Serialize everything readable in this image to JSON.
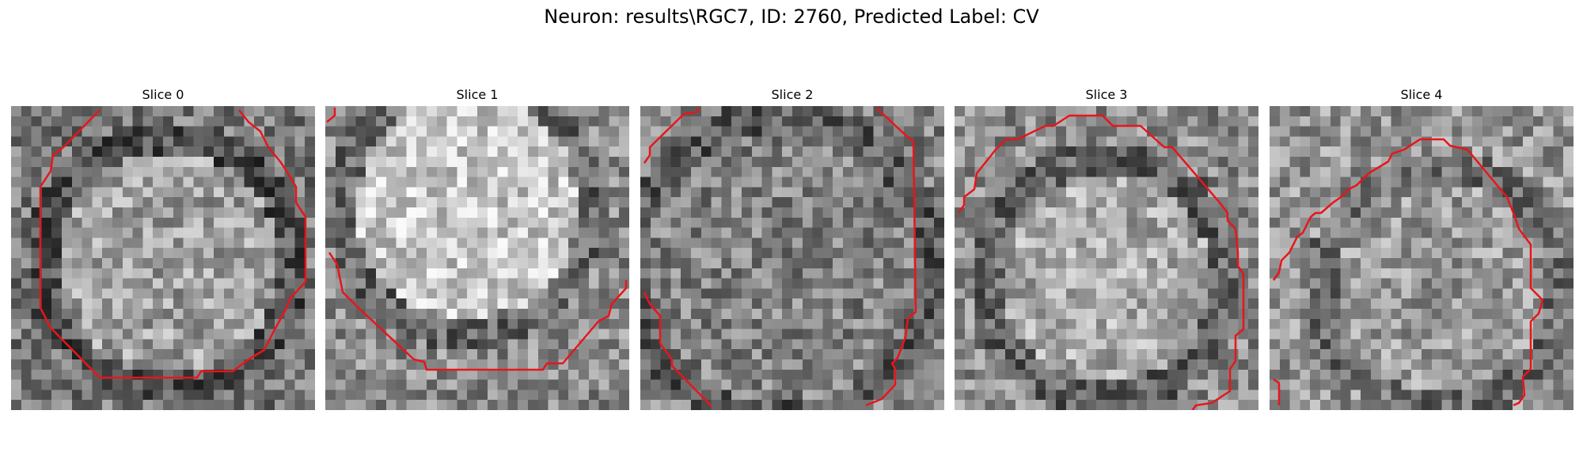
{
  "figure": {
    "title": "Neuron: results\\RGC7, ID: 2760, Predicted Label: CV",
    "colormap": "gray",
    "outline_color": "#e8151b"
  },
  "slices": [
    {
      "label": "Slice 0"
    },
    {
      "label": "Slice 1"
    },
    {
      "label": "Slice 2"
    },
    {
      "label": "Slice 3"
    },
    {
      "label": "Slice 4"
    }
  ]
}
